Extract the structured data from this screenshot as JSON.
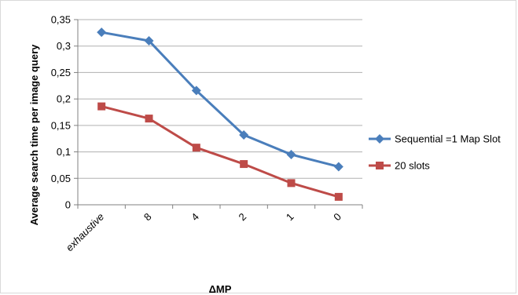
{
  "chart_data": {
    "type": "line",
    "title": "",
    "xlabel": "ΔMP",
    "ylabel": "Average search time per image query",
    "categories": [
      "exhaustive",
      "8",
      "4",
      "2",
      "1",
      "0"
    ],
    "ylim": [
      0,
      0.35
    ],
    "yticks": [
      "0",
      "0,05",
      "0,1",
      "0,15",
      "0,2",
      "0,25",
      "0,3",
      "0,35"
    ],
    "grid": true,
    "legend": "right",
    "series": [
      {
        "name": "Sequential =1 Map Slot",
        "color": "#4a7ebb",
        "marker": "diamond",
        "values": [
          0.326,
          0.31,
          0.216,
          0.132,
          0.095,
          0.072
        ]
      },
      {
        "name": "20 slots",
        "color": "#be4b48",
        "marker": "square",
        "values": [
          0.186,
          0.163,
          0.108,
          0.077,
          0.041,
          0.015
        ]
      }
    ]
  }
}
